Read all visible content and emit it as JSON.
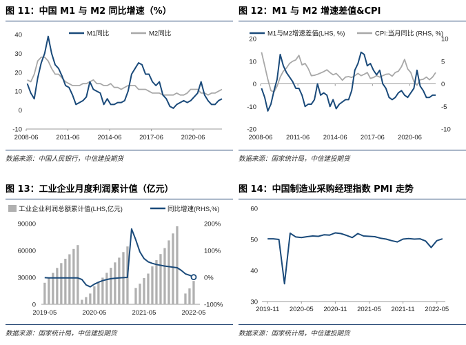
{
  "panels": [
    {
      "title": "图 11：中国 M1 与 M2 同比增速（%）",
      "source": "数据来源：中国人民银行，中信建投期货",
      "chart_data": {
        "type": "line",
        "x_tick_labels": [
          "2008-06",
          "2011-06",
          "2014-06",
          "2017-06",
          "2020-06"
        ],
        "x_tick_pos": [
          2008.42,
          2011.42,
          2014.42,
          2017.42,
          2020.42
        ],
        "xlim": [
          2008.42,
          2022.5
        ],
        "ylim": [
          -10,
          40
        ],
        "y_ticks": [
          -10,
          0,
          10,
          20,
          30,
          40
        ],
        "legend_position": "top",
        "series": [
          {
            "name": "M1同比",
            "color": "#1a4a7a",
            "axis": "left",
            "x": [
              2008.5,
              2008.75,
              2009.0,
              2009.25,
              2009.5,
              2009.75,
              2010.0,
              2010.25,
              2010.5,
              2010.75,
              2011.0,
              2011.25,
              2011.5,
              2011.75,
              2012.0,
              2012.25,
              2012.5,
              2012.75,
              2013.0,
              2013.25,
              2013.5,
              2013.75,
              2014.0,
              2014.25,
              2014.5,
              2014.75,
              2015.0,
              2015.25,
              2015.5,
              2015.75,
              2016.0,
              2016.25,
              2016.5,
              2016.75,
              2017.0,
              2017.25,
              2017.5,
              2017.75,
              2018.0,
              2018.25,
              2018.5,
              2018.75,
              2019.0,
              2019.25,
              2019.5,
              2019.75,
              2020.0,
              2020.25,
              2020.5,
              2020.75,
              2021.0,
              2021.25,
              2021.5,
              2021.75,
              2022.0,
              2022.25,
              2022.5
            ],
            "y": [
              14,
              9,
              6,
              17,
              25,
              30,
              39,
              30,
              24,
              22,
              18,
              13,
              12,
              8,
              3,
              4,
              5,
              7,
              15,
              11,
              10,
              9,
              3,
              6,
              3,
              3,
              4,
              4,
              5,
              10,
              19,
              22,
              25,
              24,
              19,
              19,
              15,
              13,
              15,
              8,
              6,
              2,
              1,
              3,
              4,
              5,
              4,
              5,
              7,
              9,
              15,
              8,
              5,
              3,
              3,
              5,
              6
            ]
          },
          {
            "name": "M2同比",
            "color": "#a8a8a8",
            "axis": "left",
            "x": [
              2008.5,
              2008.75,
              2009.0,
              2009.25,
              2009.5,
              2009.75,
              2010.0,
              2010.25,
              2010.5,
              2010.75,
              2011.0,
              2011.25,
              2011.5,
              2011.75,
              2012.0,
              2012.25,
              2012.5,
              2012.75,
              2013.0,
              2013.25,
              2013.5,
              2013.75,
              2014.0,
              2014.25,
              2014.5,
              2014.75,
              2015.0,
              2015.25,
              2015.5,
              2015.75,
              2016.0,
              2016.25,
              2016.5,
              2016.75,
              2017.0,
              2017.25,
              2017.5,
              2017.75,
              2018.0,
              2018.25,
              2018.5,
              2018.75,
              2019.0,
              2019.25,
              2019.5,
              2019.75,
              2020.0,
              2020.25,
              2020.5,
              2020.75,
              2021.0,
              2021.25,
              2021.5,
              2021.75,
              2022.0,
              2022.25,
              2022.5
            ],
            "y": [
              16,
              15,
              19,
              26,
              28,
              28,
              26,
              22,
              19,
              19,
              17,
              15,
              14,
              13,
              13,
              13,
              14,
              14,
              15,
              16,
              14,
              14,
              13,
              13,
              14,
              12,
              12,
              11,
              12,
              13,
              13,
              13,
              11,
              11,
              11,
              10,
              9,
              9,
              9,
              8,
              8,
              8,
              8,
              9,
              8,
              8,
              9,
              11,
              11,
              11,
              9,
              9,
              8,
              9,
              9,
              10,
              11
            ]
          }
        ]
      }
    },
    {
      "title": "图 12：M1 与 M2 增速差值&CPI",
      "source": "数据来源：国家统计局，中信建投期货",
      "chart_data": {
        "type": "line",
        "x_tick_labels": [
          "2008-06",
          "2011-06",
          "2014-06",
          "2017-06",
          "2020-06"
        ],
        "x_tick_pos": [
          2008.42,
          2011.42,
          2014.42,
          2017.42,
          2020.42
        ],
        "xlim": [
          2008.42,
          2022.5
        ],
        "ylim_left": [
          -20,
          20
        ],
        "y_ticks_left": [
          -20,
          -10,
          0,
          10,
          20
        ],
        "ylim_right": [
          -10,
          10
        ],
        "y_ticks_right": [
          -10,
          -5,
          0,
          5,
          10
        ],
        "legend_position": "top",
        "series": [
          {
            "name": "M1与M2增速差值(LHS, %)",
            "color": "#1a4a7a",
            "axis": "left",
            "x": [
              2008.5,
              2008.75,
              2009.0,
              2009.25,
              2009.5,
              2009.75,
              2010.0,
              2010.25,
              2010.5,
              2010.75,
              2011.0,
              2011.25,
              2011.5,
              2011.75,
              2012.0,
              2012.25,
              2012.5,
              2012.75,
              2013.0,
              2013.25,
              2013.5,
              2013.75,
              2014.0,
              2014.25,
              2014.5,
              2014.75,
              2015.0,
              2015.25,
              2015.5,
              2015.75,
              2016.0,
              2016.25,
              2016.5,
              2016.75,
              2017.0,
              2017.25,
              2017.5,
              2017.75,
              2018.0,
              2018.25,
              2018.5,
              2018.75,
              2019.0,
              2019.25,
              2019.5,
              2019.75,
              2020.0,
              2020.25,
              2020.5,
              2020.75,
              2021.0,
              2021.25,
              2021.5,
              2021.75,
              2022.0,
              2022.25,
              2022.5
            ],
            "y": [
              -2,
              -6,
              -12,
              -9,
              -3,
              2,
              13,
              8,
              5,
              3,
              1,
              -2,
              -2,
              -5,
              -10,
              -9,
              -9,
              -7,
              0,
              -5,
              -4,
              -5,
              -10,
              -7,
              -11,
              -9,
              -8,
              -7,
              -7,
              -3,
              6,
              9,
              14,
              13,
              8,
              9,
              6,
              4,
              6,
              0,
              -2,
              -6,
              -7,
              -6,
              -4,
              -3,
              -5,
              -6,
              -4,
              -2,
              6,
              -1,
              -3,
              -6,
              -6,
              -5,
              -5
            ]
          },
          {
            "name": "CPI:当月同比 (RHS, %)",
            "color": "#a8a8a8",
            "axis": "right",
            "x": [
              2008.5,
              2008.75,
              2009.0,
              2009.25,
              2009.5,
              2009.75,
              2010.0,
              2010.25,
              2010.5,
              2010.75,
              2011.0,
              2011.25,
              2011.5,
              2011.75,
              2012.0,
              2012.25,
              2012.5,
              2012.75,
              2013.0,
              2013.25,
              2013.5,
              2013.75,
              2014.0,
              2014.25,
              2014.5,
              2014.75,
              2015.0,
              2015.25,
              2015.5,
              2015.75,
              2016.0,
              2016.25,
              2016.5,
              2016.75,
              2017.0,
              2017.25,
              2017.5,
              2017.75,
              2018.0,
              2018.25,
              2018.5,
              2018.75,
              2019.0,
              2019.25,
              2019.5,
              2019.75,
              2020.0,
              2020.25,
              2020.5,
              2020.75,
              2021.0,
              2021.25,
              2021.5,
              2021.75,
              2022.0,
              2022.25,
              2022.5
            ],
            "y": [
              7,
              4,
              1,
              -1.5,
              -1.8,
              -0.5,
              1.5,
              2.8,
              3.5,
              4.5,
              5,
              5.3,
              6.3,
              4.2,
              4.5,
              3.4,
              1.8,
              1.9,
              2.1,
              2.4,
              2.7,
              3.1,
              2.5,
              2,
              2.3,
              1.6,
              0.8,
              1.5,
              1.6,
              1.4,
              1.8,
              2.3,
              1.8,
              2.1,
              2.5,
              1.2,
              1.4,
              1.8,
              1.5,
              1.8,
              2.1,
              2.2,
              1.7,
              2.5,
              2.8,
              3.8,
              5.4,
              3.3,
              2.5,
              0.5,
              -0.3,
              0.9,
              1,
              1.5,
              0.9,
              1.5,
              2.5
            ]
          }
        ]
      }
    },
    {
      "title": "图 13：工业企业月度利润累计值（亿元）",
      "source": "数据来源：国家统计局，中信建投期货",
      "chart_data": {
        "type": "bar",
        "x_tick_labels": [
          "2019-05",
          "2020-05",
          "2021-05",
          "2022-05"
        ],
        "x_tick_pos": [
          0,
          12,
          24,
          36
        ],
        "xlim": [
          -0.8,
          37.5
        ],
        "ylim_left": [
          0,
          90000
        ],
        "y_ticks_left": [
          0,
          30000,
          60000,
          90000
        ],
        "ylim_right": [
          -100,
          200
        ],
        "y_ticks_right": [
          "-100%",
          "0%",
          "100%",
          "200%"
        ],
        "y_ticks_right_values": [
          -100,
          0,
          100,
          200
        ],
        "legend_position": "top",
        "series": [
          {
            "name": "工业企业利润总额累计值(LHS,亿元)",
            "color": "#b0b0b0",
            "axis": "left",
            "kind": "bar",
            "x": [
              0,
              1,
              2,
              3,
              4,
              5,
              6,
              7,
              8,
              9,
              10,
              11,
              12,
              13,
              14,
              15,
              16,
              17,
              18,
              19,
              20,
              21,
              22,
              23,
              24,
              25,
              26,
              27,
              28,
              29,
              30,
              31,
              32,
              33,
              34,
              35,
              36,
              37
            ],
            "y": [
              24000,
              29800,
              35000,
              40500,
              45900,
              50800,
              55800,
              61700,
              66000,
              5000,
              8000,
              12000,
              20000,
              25000,
              29700,
              35100,
              40700,
              46700,
              52000,
              58200,
              64500,
              0,
              18200,
              23000,
              29300,
              34200,
              42200,
              49200,
              56000,
              62700,
              71200,
              79000,
              87000,
              0,
              12000,
              17800,
              26000,
              0
            ]
          },
          {
            "name": "同比增速(RHS,%)",
            "color": "#1a4a7a",
            "axis": "right",
            "kind": "line",
            "x": [
              0,
              1,
              2,
              3,
              4,
              5,
              6,
              7,
              8,
              9,
              10,
              11,
              12,
              13,
              14,
              15,
              16,
              17,
              18,
              19,
              20,
              21,
              22,
              23,
              24,
              25,
              26,
              27,
              28,
              29,
              30,
              31,
              32,
              33,
              34,
              35,
              36
            ],
            "y": [
              -1,
              -2,
              -2,
              -2,
              -2,
              -2,
              -2,
              -2,
              -2,
              -8,
              -28,
              -35,
              -25,
              -18,
              -12,
              -8,
              -5,
              -3,
              -2,
              -1,
              0,
              180,
              140,
              95,
              70,
              58,
              52,
              48,
              45,
              42,
              40,
              38,
              36,
              26,
              13,
              8,
              1
            ]
          }
        ]
      }
    },
    {
      "title": "图 14：中国制造业采购经理指数 PMI 走势",
      "source": "数据来源：国家统计局，中信建投期货",
      "chart_data": {
        "type": "line",
        "x_tick_labels": [
          "2019-11",
          "2020-05",
          "2020-11",
          "2021-05",
          "2021-11",
          "2022-05"
        ],
        "x_tick_pos": [
          0,
          6,
          12,
          18,
          24,
          30
        ],
        "xlim": [
          -1,
          31.5
        ],
        "ylim": [
          30,
          60
        ],
        "y_ticks": [
          30,
          40,
          50,
          60
        ],
        "series": [
          {
            "name": "",
            "color": "#1a4a7a",
            "axis": "left",
            "x": [
              0,
              1,
              2,
              3,
              4,
              5,
              6,
              7,
              8,
              9,
              10,
              11,
              12,
              13,
              14,
              15,
              16,
              17,
              18,
              19,
              20,
              21,
              22,
              23,
              24,
              25,
              26,
              27,
              28,
              29,
              30,
              31
            ],
            "y": [
              50.2,
              50.2,
              50.0,
              35.7,
              52.0,
              50.8,
              50.6,
              50.9,
              51.1,
              51.0,
              51.5,
              51.4,
              52.1,
              51.9,
              51.3,
              50.6,
              51.9,
              51.1,
              51.0,
              50.9,
              50.4,
              50.1,
              49.6,
              49.2,
              50.1,
              50.3,
              50.1,
              50.2,
              49.5,
              47.4,
              49.6,
              50.2
            ]
          }
        ]
      }
    }
  ]
}
